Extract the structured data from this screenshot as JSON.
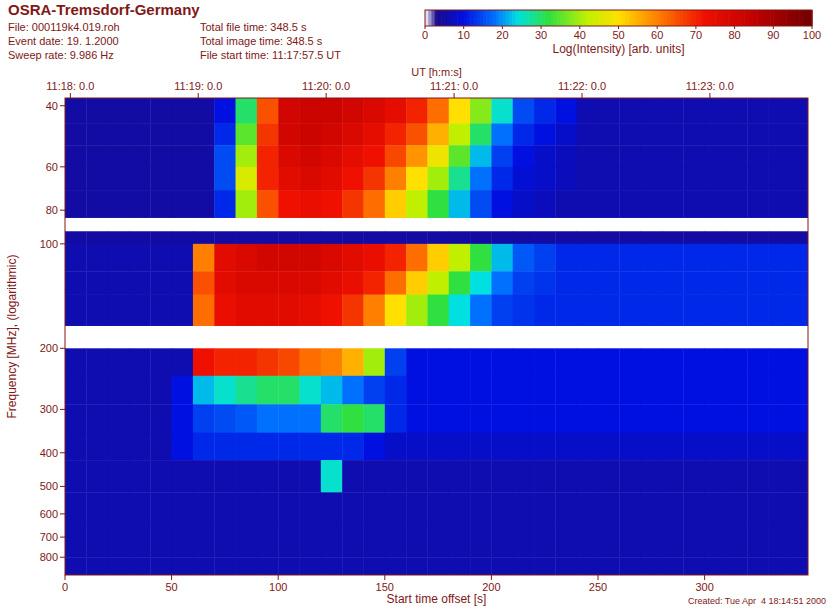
{
  "chart_data": {
    "type": "heatmap",
    "title": "OSRA-Tremsdorf-Germany",
    "info": [
      [
        "File: 000119k4.019.roh",
        "Event date: 19. 1.2000",
        "Sweep rate: 9.986 Hz"
      ],
      [
        "Total file time: 348.5 s",
        "Total image time: 348.5 s",
        "File start time: 11:17:57.5 UT"
      ]
    ],
    "footer": "Created: Tue Apr  4 18:14:51 2000",
    "xlabel": "Start time offset [s]",
    "ylabel": "Frequency [MHz], (logarithmic)",
    "x2label": "UT [h:m:s]",
    "xlim": [
      0,
      348.5
    ],
    "ylim": [
      38,
      900
    ],
    "log": "y",
    "xticks": [
      0,
      50,
      100,
      150,
      200,
      250,
      300
    ],
    "yticks": [
      40,
      60,
      80,
      100,
      200,
      300,
      400,
      500,
      600,
      700,
      800
    ],
    "x2ticks": [
      {
        "value": 2.5,
        "label": "11:18: 0.0"
      },
      {
        "value": 62.5,
        "label": "11:19: 0.0"
      },
      {
        "value": 122.5,
        "label": "11:20: 0.0"
      },
      {
        "value": 182.5,
        "label": "11:21: 0.0"
      },
      {
        "value": 242.5,
        "label": "11:22: 0.0"
      },
      {
        "value": 302.5,
        "label": "11:23: 0.0"
      }
    ],
    "colorbar": {
      "range": [
        0,
        100
      ],
      "ticks": [
        0,
        10,
        20,
        30,
        40,
        50,
        60,
        70,
        80,
        90,
        100
      ],
      "label": "Log(Intensity) [arb. units]"
    },
    "x_edges": [
      0,
      10,
      20,
      30,
      40,
      50,
      60,
      70,
      80,
      90,
      100,
      110,
      120,
      130,
      140,
      150,
      160,
      170,
      180,
      190,
      200,
      210,
      220,
      230,
      240,
      250,
      260,
      270,
      280,
      290,
      300,
      310,
      320,
      330,
      340,
      348.5
    ],
    "y_edges": [
      38,
      45,
      52,
      60,
      70,
      84,
      92,
      100,
      120,
      140,
      172,
      200,
      240,
      290,
      350,
      420,
      520,
      650,
      800,
      900
    ],
    "cells": [
      [
        5,
        5,
        5,
        5,
        5,
        5,
        5,
        10,
        30,
        65,
        80,
        82,
        82,
        80,
        78,
        75,
        70,
        62,
        50,
        38,
        25,
        15,
        12,
        10,
        6,
        6,
        6,
        6,
        6,
        6,
        6,
        6,
        6,
        6,
        6
      ],
      [
        5,
        5,
        5,
        5,
        5,
        5,
        5,
        12,
        35,
        68,
        80,
        82,
        80,
        78,
        75,
        70,
        65,
        55,
        42,
        30,
        18,
        12,
        10,
        8,
        6,
        6,
        6,
        6,
        6,
        6,
        6,
        6,
        6,
        6,
        6
      ],
      [
        5,
        5,
        5,
        5,
        5,
        5,
        5,
        15,
        40,
        70,
        78,
        80,
        78,
        75,
        72,
        66,
        58,
        48,
        35,
        22,
        14,
        10,
        8,
        7,
        6,
        6,
        6,
        6,
        6,
        6,
        6,
        6,
        6,
        6,
        6
      ],
      [
        5,
        5,
        5,
        5,
        5,
        5,
        5,
        15,
        45,
        70,
        76,
        78,
        76,
        72,
        68,
        60,
        50,
        40,
        28,
        18,
        12,
        9,
        8,
        7,
        6,
        6,
        6,
        6,
        6,
        6,
        6,
        6,
        6,
        6,
        6
      ],
      [
        5,
        5,
        5,
        5,
        5,
        5,
        5,
        12,
        40,
        65,
        72,
        74,
        72,
        68,
        62,
        52,
        42,
        32,
        22,
        15,
        10,
        8,
        7,
        6,
        6,
        6,
        6,
        6,
        6,
        6,
        6,
        6,
        6,
        6,
        6
      ],
      [
        null,
        null,
        null,
        null,
        null,
        null,
        null,
        null,
        null,
        null,
        null,
        null,
        null,
        null,
        null,
        null,
        null,
        null,
        null,
        null,
        null,
        null,
        null,
        null,
        null,
        null,
        null,
        null,
        null,
        null,
        null,
        null,
        null,
        null,
        null
      ],
      [
        5,
        5,
        5,
        5,
        5,
        5,
        5,
        5,
        5,
        5,
        5,
        5,
        5,
        5,
        5,
        5,
        5,
        5,
        5,
        5,
        5,
        5,
        5,
        5,
        5,
        5,
        5,
        5,
        5,
        5,
        5,
        5,
        5,
        5,
        5
      ],
      [
        6,
        6,
        6,
        6,
        6,
        6,
        60,
        76,
        78,
        80,
        80,
        80,
        78,
        76,
        74,
        70,
        62,
        52,
        42,
        32,
        22,
        16,
        14,
        12,
        12,
        12,
        12,
        12,
        12,
        12,
        12,
        12,
        12,
        12,
        12
      ],
      [
        6,
        6,
        6,
        6,
        6,
        6,
        65,
        76,
        78,
        78,
        78,
        78,
        76,
        74,
        70,
        62,
        52,
        42,
        32,
        24,
        18,
        14,
        13,
        12,
        12,
        12,
        12,
        12,
        12,
        12,
        12,
        12,
        12,
        12,
        12
      ],
      [
        6,
        6,
        6,
        6,
        6,
        6,
        62,
        74,
        76,
        76,
        76,
        75,
        72,
        68,
        60,
        50,
        40,
        32,
        24,
        18,
        14,
        13,
        12,
        12,
        12,
        12,
        12,
        12,
        12,
        12,
        12,
        12,
        12,
        12,
        12
      ],
      [
        null,
        null,
        null,
        null,
        null,
        null,
        null,
        null,
        null,
        null,
        null,
        null,
        null,
        null,
        null,
        null,
        null,
        null,
        null,
        null,
        null,
        null,
        null,
        null,
        null,
        null,
        null,
        null,
        null,
        null,
        null,
        null,
        null,
        null,
        null
      ],
      [
        6,
        6,
        6,
        6,
        6,
        6,
        72,
        70,
        70,
        68,
        66,
        62,
        60,
        55,
        40,
        14,
        10,
        10,
        10,
        10,
        10,
        10,
        10,
        10,
        10,
        10,
        10,
        10,
        10,
        10,
        10,
        10,
        10,
        10,
        10
      ],
      [
        6,
        6,
        6,
        6,
        6,
        10,
        22,
        25,
        28,
        30,
        30,
        25,
        22,
        18,
        14,
        12,
        10,
        10,
        10,
        10,
        10,
        10,
        10,
        10,
        10,
        10,
        10,
        10,
        10,
        10,
        10,
        10,
        10,
        10,
        10
      ],
      [
        6,
        6,
        6,
        6,
        6,
        10,
        14,
        15,
        16,
        18,
        18,
        18,
        30,
        32,
        30,
        12,
        10,
        10,
        10,
        10,
        10,
        10,
        10,
        10,
        10,
        10,
        10,
        10,
        10,
        10,
        10,
        10,
        10,
        10,
        10
      ],
      [
        6,
        6,
        6,
        6,
        6,
        10,
        12,
        12,
        12,
        12,
        12,
        12,
        12,
        12,
        10,
        8,
        8,
        8,
        8,
        8,
        8,
        8,
        8,
        8,
        8,
        8,
        8,
        8,
        8,
        8,
        8,
        8,
        8,
        8,
        8
      ],
      [
        6,
        6,
        6,
        6,
        6,
        6,
        6,
        6,
        6,
        6,
        6,
        6,
        25,
        6,
        6,
        6,
        6,
        6,
        6,
        6,
        6,
        6,
        6,
        6,
        6,
        6,
        6,
        6,
        6,
        6,
        6,
        6,
        6,
        6,
        6
      ],
      [
        6,
        6,
        6,
        6,
        6,
        6,
        6,
        6,
        6,
        6,
        6,
        6,
        6,
        6,
        6,
        6,
        6,
        6,
        6,
        6,
        6,
        6,
        6,
        6,
        6,
        6,
        6,
        6,
        6,
        6,
        6,
        6,
        6,
        6,
        6
      ],
      [
        6,
        6,
        6,
        6,
        6,
        6,
        6,
        6,
        6,
        6,
        6,
        6,
        6,
        6,
        6,
        6,
        6,
        6,
        6,
        6,
        6,
        6,
        6,
        6,
        6,
        6,
        6,
        6,
        6,
        6,
        6,
        6,
        6,
        6,
        6
      ],
      [
        6,
        6,
        6,
        6,
        6,
        6,
        6,
        6,
        6,
        6,
        6,
        6,
        6,
        6,
        6,
        6,
        6,
        6,
        6,
        6,
        6,
        6,
        6,
        6,
        6,
        6,
        6,
        6,
        6,
        6,
        6,
        6,
        6,
        6,
        6
      ]
    ]
  }
}
